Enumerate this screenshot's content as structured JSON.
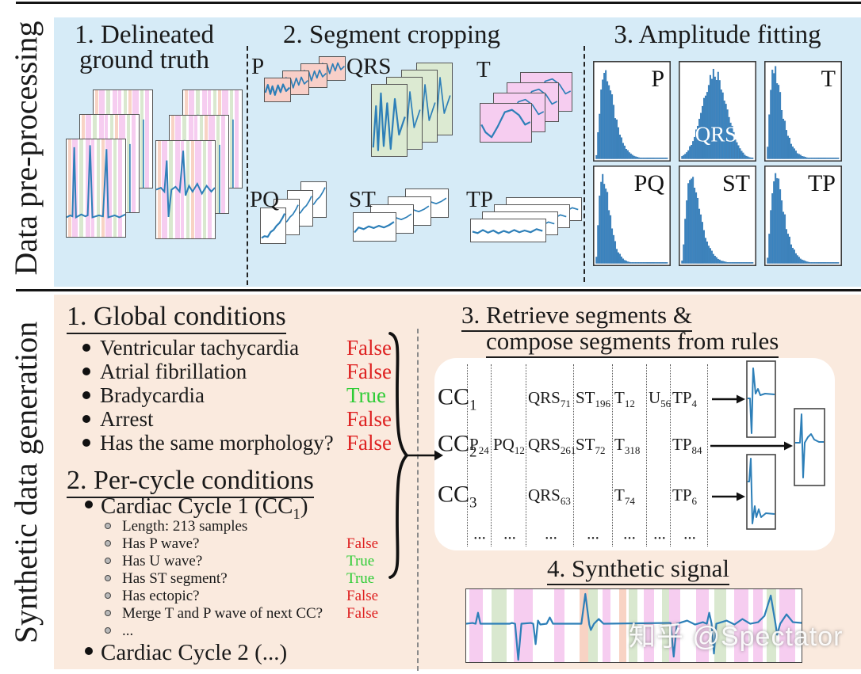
{
  "colors": {
    "panel_top_bg": "#d6ebf7",
    "panel_bottom_bg": "#faeade",
    "false_red": "#de2121",
    "true_green": "#2ecc35",
    "ecg_blue": "#2d7fb8",
    "hist_blue": "#3c87c3",
    "stripe_pink": "#f6cdf0",
    "stripe_green": "#d9e8cf",
    "stripe_salmon": "#f8d3c4",
    "card_pink": "#f8cfc8",
    "card_green": "#dcead2",
    "card_magenta": "#f6cdf0"
  },
  "top_panel": {
    "side_label": "Data pre-processing",
    "step1": {
      "title_lines": [
        "1. Delineated",
        "ground truth"
      ]
    },
    "step2": {
      "title": "2. Segment cropping",
      "groups": [
        {
          "label": "P"
        },
        {
          "label": "QRS"
        },
        {
          "label": "T"
        },
        {
          "label": "PQ"
        },
        {
          "label": "ST"
        },
        {
          "label": "TP"
        }
      ]
    },
    "step3": {
      "title": "3. Amplitude fitting",
      "histograms": [
        {
          "label": "P"
        },
        {
          "label": "QRS"
        },
        {
          "label": "T"
        },
        {
          "label": "PQ"
        },
        {
          "label": "ST"
        },
        {
          "label": "TP"
        }
      ]
    }
  },
  "bottom_panel": {
    "side_label": "Synthetic data generation",
    "global_conditions": {
      "title": "1. Global conditions",
      "items": [
        {
          "label": "Ventricular tachycardia",
          "value": "False"
        },
        {
          "label": "Atrial fibrillation",
          "value": "False"
        },
        {
          "label": "Bradycardia",
          "value": "True"
        },
        {
          "label": "Arrest",
          "value": "False"
        },
        {
          "label": "Has the same morphology?",
          "value": "False"
        }
      ]
    },
    "per_cycle_conditions": {
      "title": "2. Per-cycle conditions",
      "cycle1": {
        "label_base": "Cardiac Cycle 1 (CC",
        "label_sub": "1",
        "label_close": ")",
        "items": [
          {
            "label": "Length: 213 samples",
            "value": ""
          },
          {
            "label": "Has P wave?",
            "value": "False"
          },
          {
            "label": "Has U wave?",
            "value": "True"
          },
          {
            "label": "Has ST segment?",
            "value": "True"
          },
          {
            "label": "Has ectopic?",
            "value": "False"
          },
          {
            "label": "Merge T and P wave of next CC?",
            "value": "False"
          },
          {
            "label": "...",
            "value": ""
          }
        ]
      },
      "cycle2": {
        "label": "Cardiac Cycle 2 (...)"
      }
    },
    "retrieve": {
      "title_lines": [
        "3. Retrieve segments &",
        "compose segments from rules"
      ],
      "rows": [
        {
          "label": {
            "b": "CC",
            "s": "1"
          },
          "cells": [
            null,
            null,
            {
              "b": "QRS",
              "s": "71"
            },
            {
              "b": "ST",
              "s": "196"
            },
            {
              "b": "T",
              "s": "12"
            },
            {
              "b": "U",
              "s": "56"
            },
            {
              "b": "TP",
              "s": "4"
            }
          ]
        },
        {
          "label": {
            "b": "CC",
            "s": "2"
          },
          "cells": [
            {
              "b": "P",
              "s": "24"
            },
            {
              "b": "PQ",
              "s": "12"
            },
            {
              "b": "QRS",
              "s": "261"
            },
            {
              "b": "ST",
              "s": "72"
            },
            {
              "b": "T",
              "s": "318"
            },
            null,
            {
              "b": "TP",
              "s": "84"
            }
          ]
        },
        {
          "label": {
            "b": "CC",
            "s": "3"
          },
          "cells": [
            null,
            null,
            {
              "b": "QRS",
              "s": "63"
            },
            null,
            {
              "b": "T",
              "s": "74"
            },
            null,
            {
              "b": "TP",
              "s": "6"
            }
          ]
        }
      ],
      "ellipsis_row": [
        "...",
        "...",
        "...",
        "...",
        "...",
        "...",
        "..."
      ]
    },
    "synthetic_signal": {
      "title": "4. Synthetic signal"
    }
  },
  "watermark": "知乎 @Spectator"
}
